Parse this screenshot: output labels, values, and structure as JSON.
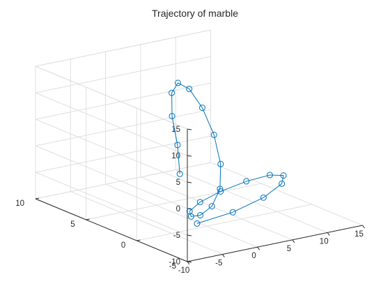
{
  "chart_data": {
    "type": "line3d",
    "title": "Trajectory of marble",
    "xlabel": "",
    "ylabel": "",
    "zlabel": "",
    "x_ticks": [
      -10,
      -5,
      0,
      5,
      10,
      15
    ],
    "y_ticks": [
      -5,
      0,
      5,
      10
    ],
    "z_ticks": [
      -10,
      -5,
      0,
      5,
      10,
      15
    ],
    "xlim": [
      -10,
      15
    ],
    "ylim": [
      -5,
      10
    ],
    "zlim": [
      -10,
      15
    ],
    "grid": true,
    "line_color": "#0072bd",
    "marker": "open-circle",
    "series": [
      {
        "x": [
          -2.38,
          2.1,
          4.69,
          5.99,
          6.05,
          4.9,
          2.66,
          -0.26,
          -3.3,
          -5.79,
          -7.12,
          -6.88,
          -5.0,
          -1.86,
          1.84,
          5.15,
          7.24,
          7.51,
          5.89,
          2.76,
          -1.08,
          -4.56,
          -6.78
        ],
        "y": [
          1.02,
          4.35,
          6.68,
          7.61,
          7.04,
          5.13,
          2.29,
          -0.89,
          -3.65,
          -5.31,
          -5.43,
          -4.12,
          -1.91,
          0.41,
          1.94,
          2.2,
          1.11,
          -1.03,
          -3.5,
          -5.5,
          -6.35,
          -5.73,
          -3.73
        ],
        "z": [
          -0.3,
          1.3,
          4.2,
          7.5,
          9.8,
          10.5,
          9.8,
          8.0,
          5.5,
          2.8,
          0.0,
          -2.8,
          -5.3,
          -7.0,
          -7.5,
          -6.6,
          -4.4,
          -1.6,
          0.7,
          1.6,
          0.7,
          -1.6,
          -4.7
        ]
      }
    ]
  }
}
